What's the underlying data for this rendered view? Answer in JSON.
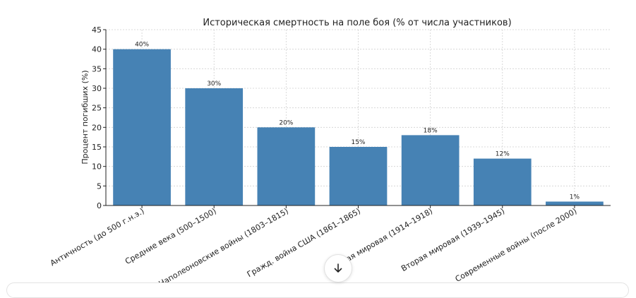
{
  "chart_data": {
    "type": "bar",
    "title": "Историческая смертность на поле боя (% от числа участников)",
    "ylabel": "Процент погибших (%)",
    "xlabel": "",
    "ylim": [
      0,
      45
    ],
    "yticks": [
      0,
      5,
      10,
      15,
      20,
      25,
      30,
      35,
      40,
      45
    ],
    "grid": true,
    "bar_color": "#4682b4",
    "categories": [
      "Античность (до 500 г.н.э.)",
      "Средние века (500–1500)",
      "Наполеоновские войны (1803–1815)",
      "Гражд. война США (1861–1865)",
      "Первая мировая (1914–1918)",
      "Вторая мировая (1939–1945)",
      "Современные войны (после 2000)"
    ],
    "values": [
      40,
      30,
      20,
      15,
      18,
      12,
      1
    ],
    "data_labels": [
      "40%",
      "30%",
      "20%",
      "15%",
      "18%",
      "12%",
      "1%"
    ]
  },
  "ui": {
    "scroll_down_icon": "arrow-down-icon"
  }
}
